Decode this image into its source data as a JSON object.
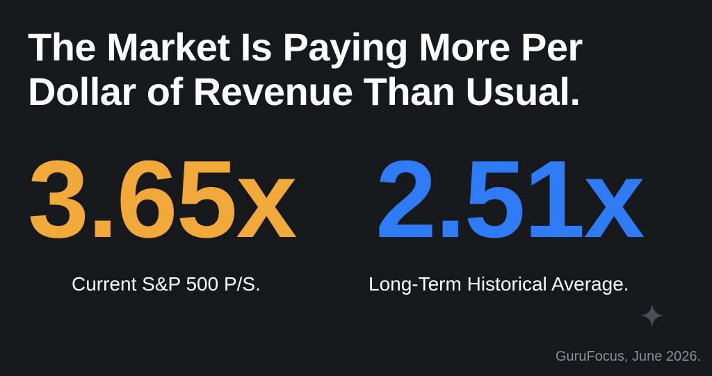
{
  "headline": {
    "line1": "The Market Is Paying More Per",
    "line2": "Dollar of Revenue Than Usual."
  },
  "stats": [
    {
      "value": "3.65x",
      "label": "Current S&P 500 P/S.",
      "color": "#f0a93a"
    },
    {
      "value": "2.51x",
      "label": "Long-Term Historical Average.",
      "color": "#2f7bf5"
    }
  ],
  "decoration": {
    "icon": "sparkle-icon"
  },
  "source": "GuruFocus, June 2026."
}
